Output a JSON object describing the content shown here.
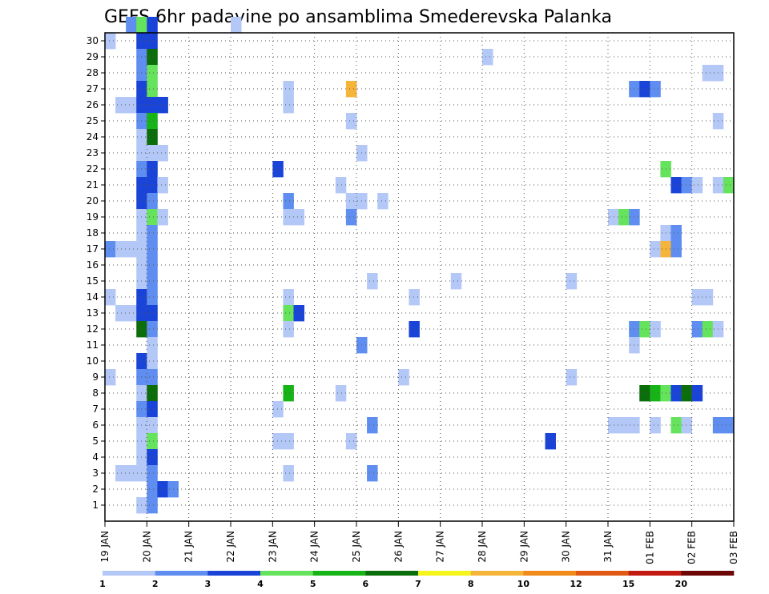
{
  "chart_data": {
    "type": "heatmap",
    "title": "GEFS 6hr padavine po ansamblima Smederevska Palanka",
    "x_ticks": [
      "19 JAN",
      "20 JAN",
      "21 JAN",
      "22 JAN",
      "23 JAN",
      "24 JAN",
      "25 JAN",
      "26 JAN",
      "27 JAN",
      "28 JAN",
      "29 JAN",
      "30 JAN",
      "31 JAN",
      "01 FEB",
      "02 FEB",
      "03 FEB"
    ],
    "y_ticks": [
      1,
      2,
      3,
      4,
      5,
      6,
      7,
      8,
      9,
      10,
      11,
      12,
      13,
      14,
      15,
      16,
      17,
      18,
      19,
      20,
      21,
      22,
      23,
      24,
      25,
      26,
      27,
      28,
      29,
      30
    ],
    "steps_per_day": 4,
    "grid": "dotted",
    "colorbar": {
      "thresholds": [
        1,
        2,
        3,
        4,
        5,
        6,
        7,
        8,
        10,
        12,
        15,
        20
      ],
      "colors": [
        "#b4c8f8",
        "#5f8ef0",
        "#1a44d8",
        "#66e35c",
        "#17b417",
        "#0b6e0b",
        "#f5f51c",
        "#f5b43a",
        "#f28a1a",
        "#e05a14",
        "#c21a10",
        "#6e0808"
      ]
    },
    "cells": [
      [
        30,
        2,
        1
      ],
      [
        30,
        3,
        3
      ],
      [
        30,
        4,
        2
      ],
      [
        30,
        12,
        0
      ],
      [
        29,
        0,
        0
      ],
      [
        29,
        3,
        2
      ],
      [
        29,
        4,
        2
      ],
      [
        28,
        3,
        1
      ],
      [
        28,
        4,
        5
      ],
      [
        28,
        36,
        0
      ],
      [
        27,
        3,
        1
      ],
      [
        27,
        4,
        3
      ],
      [
        27,
        57,
        0
      ],
      [
        27,
        58,
        0
      ],
      [
        26,
        3,
        2
      ],
      [
        26,
        4,
        3
      ],
      [
        26,
        17,
        0
      ],
      [
        26,
        23,
        7
      ],
      [
        26,
        50,
        1
      ],
      [
        26,
        51,
        2
      ],
      [
        26,
        52,
        1
      ],
      [
        25,
        1,
        0
      ],
      [
        25,
        2,
        0
      ],
      [
        25,
        3,
        2
      ],
      [
        25,
        4,
        2
      ],
      [
        25,
        5,
        2
      ],
      [
        25,
        17,
        0
      ],
      [
        24,
        3,
        1
      ],
      [
        24,
        4,
        4
      ],
      [
        24,
        23,
        0
      ],
      [
        24,
        58,
        0
      ],
      [
        23,
        3,
        0
      ],
      [
        23,
        4,
        5
      ],
      [
        22,
        3,
        0
      ],
      [
        22,
        4,
        0
      ],
      [
        22,
        5,
        0
      ],
      [
        22,
        24,
        0
      ],
      [
        21,
        3,
        1
      ],
      [
        21,
        4,
        2
      ],
      [
        21,
        16,
        2
      ],
      [
        21,
        53,
        3
      ],
      [
        20,
        3,
        2
      ],
      [
        20,
        4,
        2
      ],
      [
        20,
        5,
        0
      ],
      [
        20,
        22,
        0
      ],
      [
        20,
        54,
        2
      ],
      [
        20,
        55,
        1
      ],
      [
        20,
        56,
        0
      ],
      [
        20,
        58,
        0
      ],
      [
        20,
        59,
        3
      ],
      [
        19,
        3,
        2
      ],
      [
        19,
        4,
        1
      ],
      [
        19,
        17,
        1
      ],
      [
        19,
        23,
        0
      ],
      [
        19,
        24,
        0
      ],
      [
        19,
        26,
        0
      ],
      [
        18,
        3,
        0
      ],
      [
        18,
        4,
        3
      ],
      [
        18,
        5,
        0
      ],
      [
        18,
        17,
        0
      ],
      [
        18,
        18,
        0
      ],
      [
        18,
        23,
        1
      ],
      [
        18,
        48,
        0
      ],
      [
        18,
        49,
        3
      ],
      [
        18,
        50,
        1
      ],
      [
        17,
        3,
        0
      ],
      [
        17,
        4,
        1
      ],
      [
        17,
        53,
        0
      ],
      [
        17,
        54,
        1
      ],
      [
        16,
        0,
        1
      ],
      [
        16,
        1,
        0
      ],
      [
        16,
        2,
        0
      ],
      [
        16,
        3,
        0
      ],
      [
        16,
        4,
        1
      ],
      [
        16,
        52,
        0
      ],
      [
        16,
        53,
        7
      ],
      [
        16,
        54,
        1
      ],
      [
        15,
        3,
        0
      ],
      [
        15,
        4,
        1
      ],
      [
        14,
        3,
        0
      ],
      [
        14,
        4,
        1
      ],
      [
        14,
        25,
        0
      ],
      [
        14,
        33,
        0
      ],
      [
        14,
        44,
        0
      ],
      [
        13,
        0,
        0
      ],
      [
        13,
        3,
        2
      ],
      [
        13,
        4,
        1
      ],
      [
        13,
        17,
        0
      ],
      [
        13,
        29,
        0
      ],
      [
        13,
        56,
        0
      ],
      [
        13,
        57,
        0
      ],
      [
        12,
        1,
        0
      ],
      [
        12,
        2,
        0
      ],
      [
        12,
        3,
        2
      ],
      [
        12,
        4,
        2
      ],
      [
        12,
        17,
        3
      ],
      [
        12,
        18,
        2
      ],
      [
        11,
        3,
        5
      ],
      [
        11,
        4,
        1
      ],
      [
        11,
        17,
        0
      ],
      [
        11,
        29,
        2
      ],
      [
        11,
        50,
        1
      ],
      [
        11,
        51,
        3
      ],
      [
        11,
        52,
        0
      ],
      [
        11,
        56,
        1
      ],
      [
        11,
        57,
        3
      ],
      [
        11,
        58,
        0
      ],
      [
        10,
        4,
        0
      ],
      [
        10,
        24,
        1
      ],
      [
        10,
        50,
        0
      ],
      [
        9,
        3,
        2
      ],
      [
        9,
        4,
        0
      ],
      [
        8,
        0,
        0
      ],
      [
        8,
        3,
        1
      ],
      [
        8,
        4,
        1
      ],
      [
        8,
        28,
        0
      ],
      [
        8,
        44,
        0
      ],
      [
        7,
        3,
        0
      ],
      [
        7,
        4,
        5
      ],
      [
        7,
        17,
        4
      ],
      [
        7,
        22,
        0
      ],
      [
        7,
        51,
        5
      ],
      [
        7,
        52,
        4
      ],
      [
        7,
        53,
        3
      ],
      [
        7,
        54,
        2
      ],
      [
        7,
        55,
        5
      ],
      [
        7,
        56,
        2
      ],
      [
        6,
        3,
        1
      ],
      [
        6,
        4,
        2
      ],
      [
        6,
        16,
        0
      ],
      [
        5,
        3,
        0
      ],
      [
        5,
        4,
        0
      ],
      [
        5,
        25,
        1
      ],
      [
        5,
        48,
        0
      ],
      [
        5,
        49,
        0
      ],
      [
        5,
        50,
        0
      ],
      [
        5,
        52,
        0
      ],
      [
        5,
        54,
        3
      ],
      [
        5,
        55,
        0
      ],
      [
        5,
        58,
        1
      ],
      [
        5,
        59,
        1
      ],
      [
        4,
        3,
        0
      ],
      [
        4,
        4,
        3
      ],
      [
        4,
        16,
        0
      ],
      [
        4,
        17,
        0
      ],
      [
        4,
        23,
        0
      ],
      [
        4,
        42,
        2
      ],
      [
        3,
        3,
        0
      ],
      [
        3,
        4,
        2
      ],
      [
        2,
        1,
        0
      ],
      [
        2,
        2,
        0
      ],
      [
        2,
        3,
        0
      ],
      [
        2,
        4,
        1
      ],
      [
        2,
        17,
        0
      ],
      [
        2,
        25,
        1
      ],
      [
        1,
        4,
        1
      ],
      [
        1,
        5,
        2
      ],
      [
        1,
        6,
        1
      ],
      [
        0,
        3,
        0
      ],
      [
        0,
        4,
        1
      ]
    ]
  }
}
